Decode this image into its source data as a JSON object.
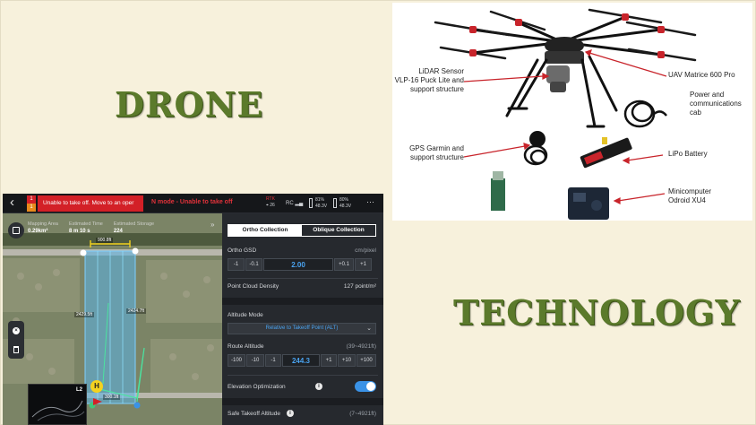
{
  "headings": {
    "drone": "DRONE",
    "technology": "TECHNOLOGY"
  },
  "equipment": {
    "lidar": "LiDAR Sensor\nVLP-16 Puck Lite and\nsupport structure",
    "uav": "UAV Matrice 600 Pro",
    "power": "Power and\ncommunications cab",
    "gps": "GPS Garmin and\nsupport structure",
    "battery": "LiPo Battery",
    "computer": "Minicomputer\nOdroid XU4"
  },
  "app": {
    "topbar": {
      "back_glyph": "‹",
      "alert_count_top": "1",
      "alert_count_bottom": "1",
      "alert_text": "Unable to take off. Move to an oper",
      "mode_text": "N mode - Unable to take off",
      "rtk_label": "RTK",
      "rtk_value": "26",
      "rc_label": "RC",
      "battery1_pct": "81%",
      "battery1_volt": "48.3V",
      "battery2_pct": "80%",
      "battery2_volt": "48.3V",
      "more_glyph": "···"
    },
    "map": {
      "stats": [
        {
          "label": "Mapping Area",
          "value": "0.29km²"
        },
        {
          "label": "Estimated Time",
          "value": "8 m 10 s"
        },
        {
          "label": "Estimated Storage",
          "value": "224"
        }
      ],
      "dim_top": "900.8ft",
      "dim_left": "2429.5ft",
      "dim_right": "2424.7ft",
      "dim_bottom": "300.1ft",
      "home_marker": "H",
      "minimap_label": "L2",
      "expand_glyph": "»"
    },
    "panel": {
      "tab_ortho": "Ortho Collection",
      "tab_oblique": "Oblique Collection",
      "ortho_gsd_label": "Ortho GSD",
      "ortho_gsd_unit": "cm/pixel",
      "gsd_buttons_left": [
        "-1",
        "-0.1"
      ],
      "gsd_value": "2.00",
      "gsd_buttons_right": [
        "+0.1",
        "+1"
      ],
      "pcd_label": "Point Cloud Density",
      "pcd_value": "127 point/m²",
      "alt_mode_label": "Altitude Mode",
      "alt_mode_value": "Relative to Takeoff Point (ALT)",
      "route_alt_label": "Route Altitude",
      "route_alt_range": "(39~4921ft)",
      "route_buttons_left": [
        "-100",
        "-10",
        "-1"
      ],
      "route_value": "244.3",
      "route_buttons_right": [
        "+1",
        "+10",
        "+100"
      ],
      "elev_opt_label": "Elevation Optimization",
      "safe_alt_label": "Safe Takeoff Altitude",
      "safe_alt_range": "(7~4921ft)"
    }
  },
  "colors": {
    "heading": "#5b7a2b",
    "alert_red": "#d32027",
    "accent_blue": "#4aa3f0",
    "mission_area": "#5ab4e8"
  }
}
